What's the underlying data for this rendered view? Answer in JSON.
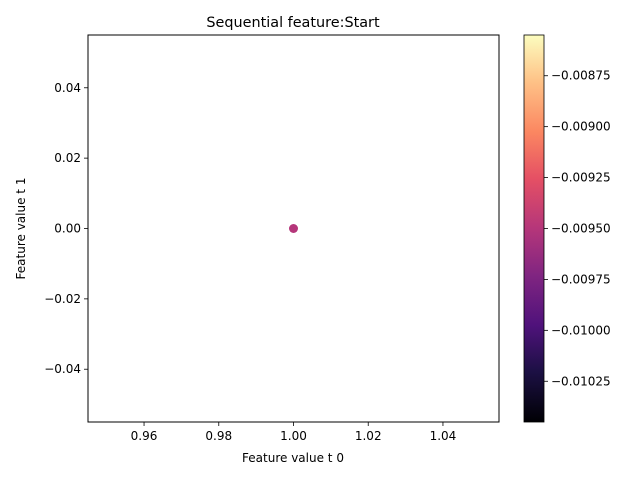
{
  "chart_data": {
    "type": "scatter",
    "title": "Sequential feature:Start",
    "xlabel": "Feature value t 0",
    "ylabel": "Feature value t 1",
    "xlim": [
      0.945,
      1.055
    ],
    "ylim": [
      -0.055,
      0.055
    ],
    "x_ticks": [
      0.96,
      0.98,
      1.0,
      1.02,
      1.04
    ],
    "x_tick_labels": [
      "0.96",
      "0.98",
      "1.00",
      "1.02",
      "1.04"
    ],
    "y_ticks": [
      -0.04,
      -0.02,
      0.0,
      0.02,
      0.04
    ],
    "y_tick_labels": [
      "−0.04",
      "−0.02",
      "0.00",
      "0.02",
      "0.04"
    ],
    "points": [
      {
        "x": 1.0,
        "y": 0.0,
        "c": -0.0095,
        "color": "#B5367A"
      }
    ],
    "grid": false,
    "colorbar": {
      "cmap": "magma",
      "range": [
        -0.01045,
        -0.00855
      ],
      "ticks": [
        -0.01025,
        -0.01,
        -0.00975,
        -0.0095,
        -0.00925,
        -0.009,
        -0.00875
      ],
      "tick_labels": [
        "−0.01025",
        "−0.01000",
        "−0.00975",
        "−0.00950",
        "−0.00925",
        "−0.00900",
        "−0.00875"
      ]
    }
  }
}
